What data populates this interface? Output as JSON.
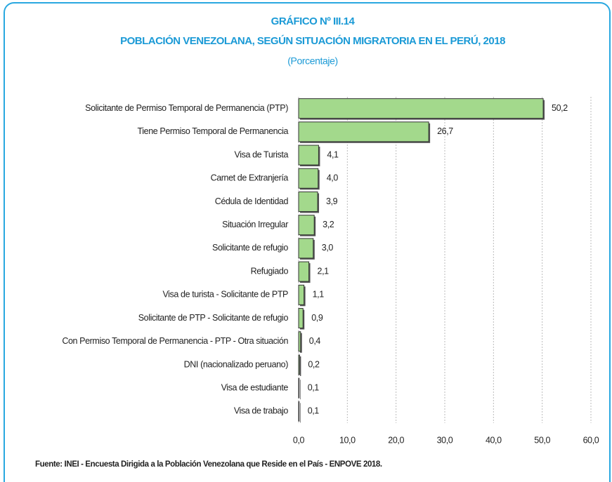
{
  "chart_data": {
    "type": "barh",
    "title": "GRÁFICO Nº III.14",
    "subtitle": "POBLACIÓN  VENEZOLANA, SEGÚN SITUACIÓN MIGRATORIA EN EL PERÚ, 2018",
    "unit_note": "(Porcentaje)",
    "source": "Fuente: INEI - Encuesta Dirigida a la Población Venezolana que Reside en el País - ENPOVE 2018.",
    "categories": [
      "Solicitante de Permiso Temporal de Permanencia (PTP)",
      "Tiene Permiso Temporal de Permanencia",
      "Visa de Turista",
      "Carnet de Extranjería",
      "Cédula de Identidad",
      "Situación Irregular",
      "Solicitante de refugio",
      "Refugiado",
      "Visa de turista - Solicitante de PTP",
      "Solicitante de PTP - Solicitante de refugio",
      "Con Permiso Temporal de Permanencia - PTP - Otra situación",
      "DNI (nacionalizado peruano)",
      "Visa de estudiante",
      "Visa de trabajo"
    ],
    "values": [
      50.2,
      26.7,
      4.1,
      4.0,
      3.9,
      3.2,
      3.0,
      2.1,
      1.1,
      0.9,
      0.4,
      0.2,
      0.1,
      0.1
    ],
    "value_labels": [
      "50,2",
      "26,7",
      "4,1",
      "4,0",
      "3,9",
      "3,2",
      "3,0",
      "2,1",
      "1,1",
      "0,9",
      "0,4",
      "0,2",
      "0,1",
      "0,1"
    ],
    "color": "#a3d98c",
    "xlim": [
      0,
      60
    ],
    "xticks": [
      {
        "value": 0,
        "label": "0,0"
      },
      {
        "value": 10,
        "label": "10,0"
      },
      {
        "value": 20,
        "label": "20,0"
      },
      {
        "value": 30,
        "label": "30,0"
      },
      {
        "value": 40,
        "label": "40,0"
      },
      {
        "value": 50,
        "label": "50,0"
      },
      {
        "value": 60,
        "label": "60,0"
      }
    ],
    "grid": true
  }
}
